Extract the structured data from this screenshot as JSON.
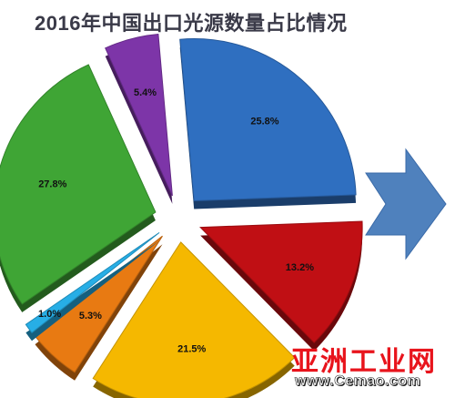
{
  "chart_data": {
    "type": "pie",
    "title": "2016年中国出口光源数量占比情况",
    "slices": [
      {
        "value": 25.8,
        "label": "25.8%",
        "color": "#2f6fc0"
      },
      {
        "value": 13.2,
        "label": "13.2%",
        "color": "#c00f14"
      },
      {
        "value": 21.5,
        "label": "21.5%",
        "color": "#f5b800"
      },
      {
        "value": 5.3,
        "label": "5.3%",
        "color": "#e87a12"
      },
      {
        "value": 1.0,
        "label": "1.0%",
        "color": "#27aee6"
      },
      {
        "value": 27.8,
        "label": "27.8%",
        "color": "#3fa535"
      },
      {
        "value": 5.4,
        "label": "5.4%",
        "color": "#7d35a8"
      }
    ],
    "arrow_color": "#4f81bd"
  },
  "watermark": {
    "text_cn": "亚洲工业网",
    "url": "www.Cemao.com"
  }
}
